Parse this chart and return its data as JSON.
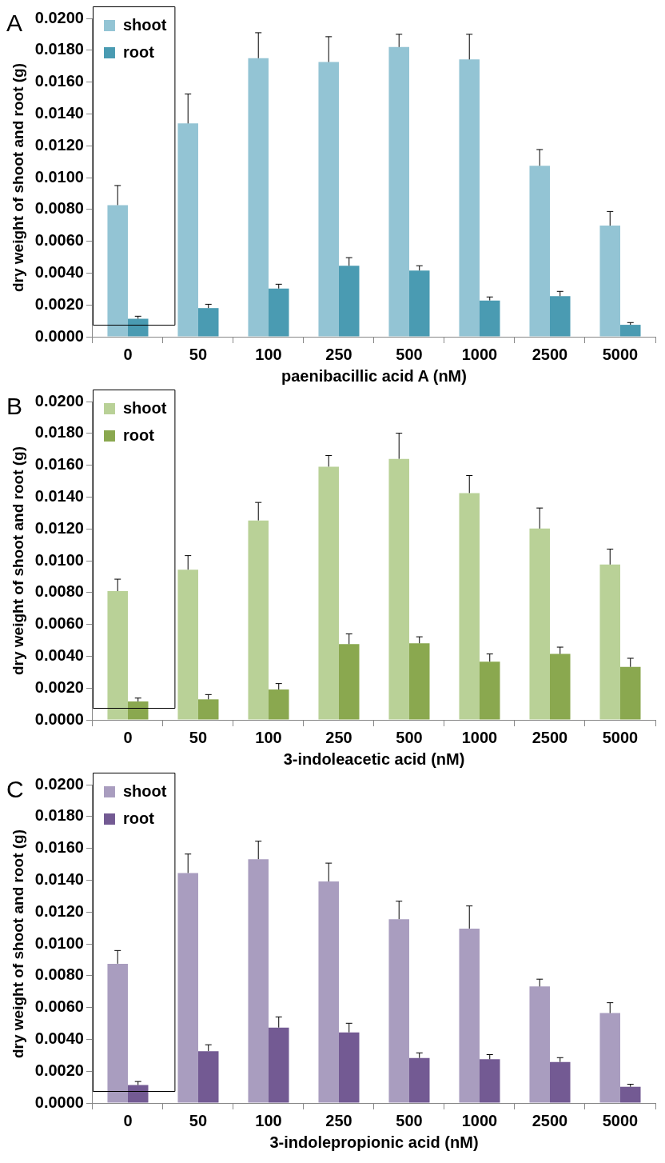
{
  "chart_data": [
    {
      "type": "bar",
      "title": "A",
      "xlabel": "paenibacillic acid A (nM)",
      "ylabel": "dry weight of shoot and root (g)",
      "categories": [
        "0",
        "50",
        "100",
        "250",
        "500",
        "1000",
        "2500",
        "5000"
      ],
      "series": [
        {
          "name": "shoot",
          "color": "#93c4d4",
          "values": [
            0.00827,
            0.0134,
            0.0175,
            0.01726,
            0.0182,
            0.01742,
            0.01074,
            0.00698
          ],
          "errors": [
            [
              0.00827,
              0.0095
            ],
            [
              0.0134,
              0.01525
            ],
            [
              0.0175,
              0.0191
            ],
            [
              0.01726,
              0.01885
            ],
            [
              0.0182,
              0.019
            ],
            [
              0.01742,
              0.019
            ],
            [
              0.01074,
              0.01176
            ],
            [
              0.00698,
              0.00787
            ]
          ]
        },
        {
          "name": "root",
          "color": "#4a9bb2",
          "values": [
            0.00113,
            0.0018,
            0.00303,
            0.00446,
            0.00416,
            0.00228,
            0.00255,
            0.00075
          ],
          "errors": [
            [
              0.00113,
              0.00129
            ],
            [
              0.0018,
              0.00204
            ],
            [
              0.00303,
              0.0033
            ],
            [
              0.00446,
              0.00497
            ],
            [
              0.00416,
              0.00446
            ],
            [
              0.00228,
              0.0025
            ],
            [
              0.00255,
              0.00285
            ],
            [
              0.00075,
              0.00089
            ]
          ]
        }
      ],
      "ylim": [
        0,
        0.02
      ],
      "yticks": [
        {
          "value": 0,
          "label": "0.0000"
        },
        {
          "value": 0.002,
          "label": "0.0020"
        },
        {
          "value": 0.004,
          "label": "0.0040"
        },
        {
          "value": 0.006,
          "label": "0.0060"
        },
        {
          "value": 0.008,
          "label": "0.0080"
        },
        {
          "value": 0.01,
          "label": "0.0100"
        },
        {
          "value": 0.012,
          "label": "0.0120"
        },
        {
          "value": 0.014,
          "label": "0.0140"
        },
        {
          "value": 0.016,
          "label": "0.0160"
        },
        {
          "value": 0.018,
          "label": "0.0180"
        },
        {
          "value": 0.02,
          "label": "0.0200"
        }
      ],
      "grid": false,
      "legend": "top left"
    },
    {
      "type": "bar",
      "title": "B",
      "xlabel": "3-indoleacetic acid (nM)",
      "ylabel": "dry weight of shoot and root (g)",
      "categories": [
        "0",
        "50",
        "100",
        "250",
        "500",
        "1000",
        "2500",
        "5000"
      ],
      "series": [
        {
          "name": "shoot",
          "color": "#b9d197",
          "values": [
            0.00809,
            0.00944,
            0.01253,
            0.01591,
            0.0164,
            0.01425,
            0.01202,
            0.00976
          ],
          "errors": [
            [
              0.00809,
              0.00884
            ],
            [
              0.00944,
              0.01032
            ],
            [
              0.01253,
              0.01366
            ],
            [
              0.01591,
              0.01661
            ],
            [
              0.0164,
              0.01801
            ],
            [
              0.01425,
              0.01535
            ],
            [
              0.01202,
              0.01331
            ],
            [
              0.00976,
              0.01073
            ]
          ]
        },
        {
          "name": "root",
          "color": "#8aa84f",
          "values": [
            0.00116,
            0.00129,
            0.00191,
            0.00476,
            0.00481,
            0.00366,
            0.00414,
            0.00333
          ],
          "errors": [
            [
              0.00116,
              0.00137
            ],
            [
              0.00129,
              0.00159
            ],
            [
              0.00191,
              0.00228
            ],
            [
              0.00476,
              0.0054
            ],
            [
              0.00481,
              0.00522
            ],
            [
              0.00366,
              0.00414
            ],
            [
              0.00414,
              0.00457
            ],
            [
              0.00333,
              0.00387
            ]
          ]
        }
      ],
      "ylim": [
        0,
        0.02
      ],
      "yticks": [
        {
          "value": 0,
          "label": "0.0000"
        },
        {
          "value": 0.002,
          "label": "0.0020"
        },
        {
          "value": 0.004,
          "label": "0.0040"
        },
        {
          "value": 0.006,
          "label": "0.0060"
        },
        {
          "value": 0.008,
          "label": "0.0080"
        },
        {
          "value": 0.01,
          "label": "0.0100"
        },
        {
          "value": 0.012,
          "label": "0.0120"
        },
        {
          "value": 0.014,
          "label": "0.0140"
        },
        {
          "value": 0.016,
          "label": "0.0160"
        },
        {
          "value": 0.018,
          "label": "0.0180"
        },
        {
          "value": 0.02,
          "label": "0.0200"
        }
      ],
      "grid": false,
      "legend": "top left"
    },
    {
      "type": "bar",
      "title": "C",
      "xlabel": "3-indolepropionic acid (nM)",
      "ylabel": "dry weight of shoot and root (g)",
      "categories": [
        "0",
        "50",
        "100",
        "250",
        "500",
        "1000",
        "2500",
        "5000"
      ],
      "series": [
        {
          "name": "shoot",
          "color": "#a99dbf",
          "values": [
            0.00875,
            0.01445,
            0.01532,
            0.01392,
            0.01155,
            0.01096,
            0.00732,
            0.00565
          ],
          "errors": [
            [
              0.00875,
              0.00958
            ],
            [
              0.01445,
              0.01564
            ],
            [
              0.01532,
              0.01645
            ],
            [
              0.01392,
              0.01507
            ],
            [
              0.01155,
              0.01268
            ],
            [
              0.01096,
              0.01238
            ],
            [
              0.00732,
              0.00778
            ],
            [
              0.00565,
              0.0063
            ]
          ]
        },
        {
          "name": "root",
          "color": "#735a93",
          "values": [
            0.00113,
            0.00326,
            0.00474,
            0.00444,
            0.00283,
            0.00275,
            0.00258,
            0.00102
          ],
          "errors": [
            [
              0.00113,
              0.00135
            ],
            [
              0.00326,
              0.00366
            ],
            [
              0.00474,
              0.00541
            ],
            [
              0.00444,
              0.00501
            ],
            [
              0.00283,
              0.00315
            ],
            [
              0.00275,
              0.00304
            ],
            [
              0.00258,
              0.00285
            ],
            [
              0.00102,
              0.00118
            ]
          ]
        }
      ],
      "ylim": [
        0,
        0.02
      ],
      "yticks": [
        {
          "value": 0,
          "label": "0.0000"
        },
        {
          "value": 0.002,
          "label": "0.0020"
        },
        {
          "value": 0.004,
          "label": "0.0040"
        },
        {
          "value": 0.006,
          "label": "0.0060"
        },
        {
          "value": 0.008,
          "label": "0.0080"
        },
        {
          "value": 0.01,
          "label": "0.0100"
        },
        {
          "value": 0.012,
          "label": "0.0120"
        },
        {
          "value": 0.014,
          "label": "0.0140"
        },
        {
          "value": 0.016,
          "label": "0.0160"
        },
        {
          "value": 0.018,
          "label": "0.0180"
        },
        {
          "value": 0.02,
          "label": "0.0200"
        }
      ],
      "grid": false,
      "legend": "top left"
    }
  ]
}
